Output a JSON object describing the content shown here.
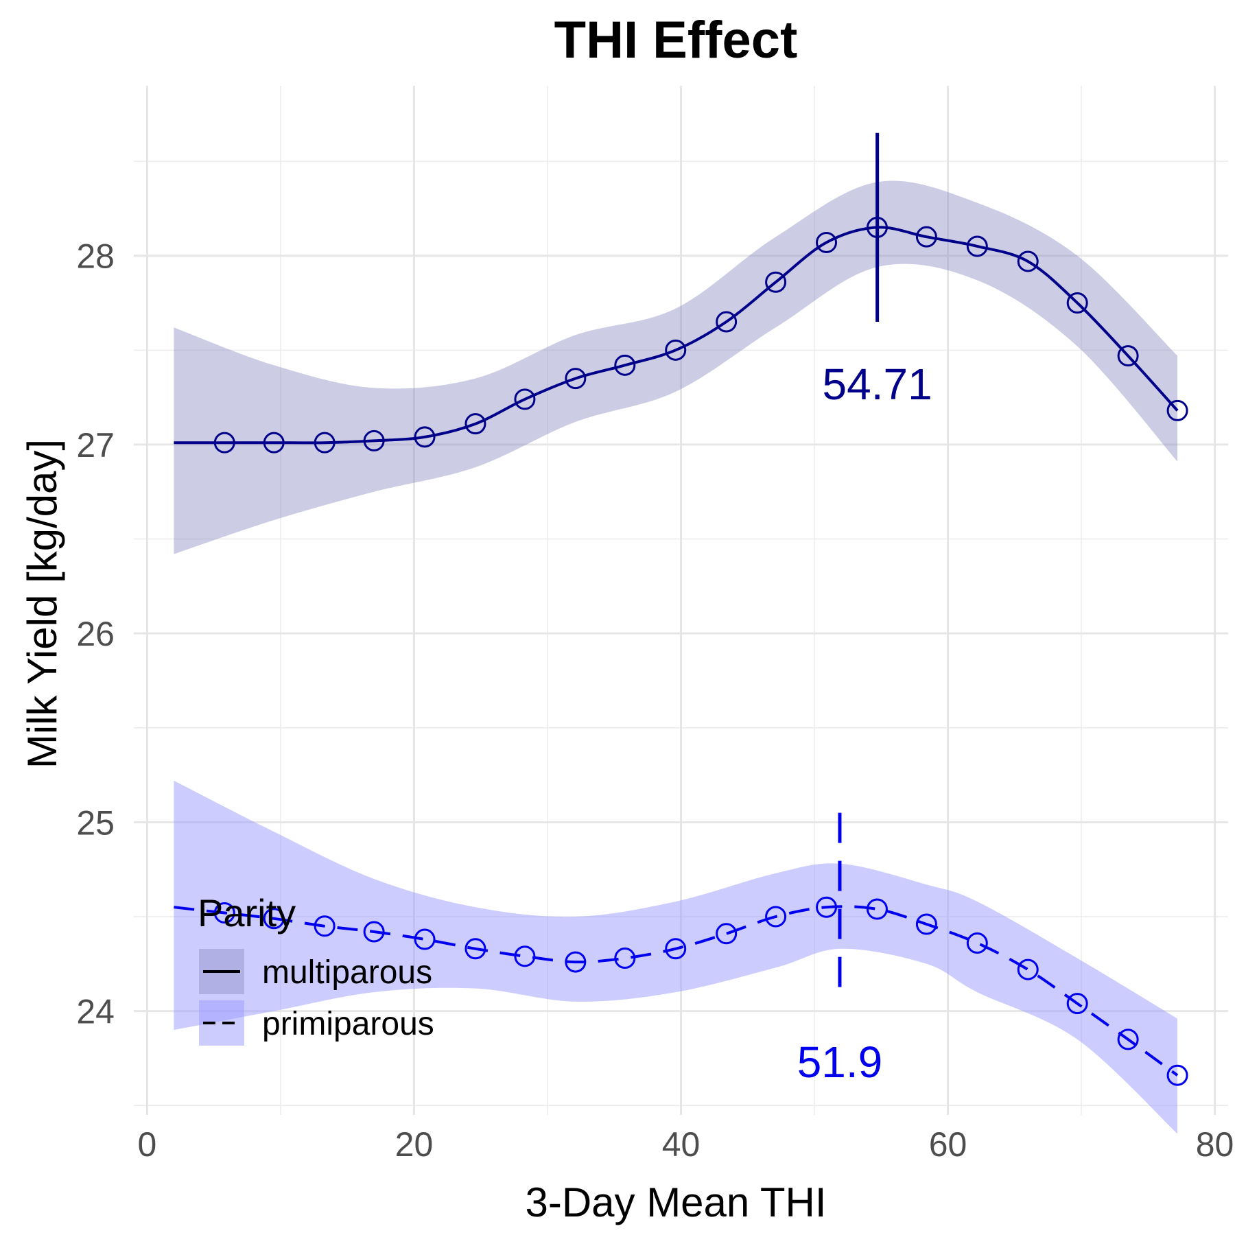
{
  "chart_data": {
    "type": "line",
    "title": "THI Effect",
    "xlabel": "3-Day Mean THI",
    "ylabel": "Milk Yield [kg/day]",
    "xlim": [
      -1,
      81
    ],
    "ylim": [
      23.45,
      28.9
    ],
    "x_ticks": [
      0,
      20,
      40,
      60,
      80
    ],
    "x_tick_labels": [
      "0",
      "20",
      "40",
      "60",
      "80"
    ],
    "y_ticks": [
      24,
      25,
      26,
      27,
      28
    ],
    "y_tick_labels": [
      "24",
      "25",
      "26",
      "27",
      "28"
    ],
    "grid": true,
    "legend": {
      "title": "Parity",
      "position": "bottom-left",
      "entries": [
        {
          "label": "multiparous",
          "linestyle": "solid"
        },
        {
          "label": "primiparous",
          "linestyle": "dashed"
        }
      ]
    },
    "series": [
      {
        "name": "multiparous",
        "color": "#00008b",
        "fill": "#8f8fc4",
        "linestyle": "solid",
        "curve": {
          "x": [
            2,
            5.8,
            9.5,
            13.3,
            17,
            20.8,
            24.6,
            28.3,
            32.1,
            35.8,
            39.6,
            43.4,
            47.1,
            50.9,
            54.7,
            58.4,
            62.2,
            66,
            69.7,
            73.5,
            77.2
          ],
          "y": [
            27.01,
            27.01,
            27.01,
            27.01,
            27.02,
            27.04,
            27.11,
            27.24,
            27.35,
            27.42,
            27.5,
            27.65,
            27.86,
            28.07,
            28.15,
            28.1,
            28.05,
            27.97,
            27.75,
            27.47,
            27.18
          ]
        },
        "band": {
          "x": [
            2,
            9.5,
            17,
            24.6,
            32.1,
            39.6,
            47.1,
            54.7,
            62.2,
            69.7,
            77.2
          ],
          "lower": [
            26.42,
            26.6,
            26.75,
            26.88,
            27.12,
            27.28,
            27.62,
            27.94,
            27.87,
            27.52,
            26.91
          ],
          "upper": [
            27.62,
            27.42,
            27.3,
            27.35,
            27.58,
            27.72,
            28.1,
            28.39,
            28.28,
            28.0,
            27.47
          ]
        },
        "markers": {
          "x": [
            5.8,
            9.5,
            13.3,
            17,
            20.8,
            24.6,
            28.3,
            32.1,
            35.8,
            39.6,
            43.4,
            47.1,
            50.9,
            54.7,
            58.4,
            62.2,
            66,
            69.7,
            73.5,
            77.2
          ],
          "y": [
            27.01,
            27.01,
            27.01,
            27.02,
            27.04,
            27.11,
            27.24,
            27.35,
            27.42,
            27.5,
            27.65,
            27.86,
            28.07,
            28.15,
            28.1,
            28.05,
            27.97,
            27.75,
            27.47,
            27.18
          ]
        },
        "peak": {
          "x": 54.71,
          "y_range": [
            27.65,
            28.65
          ],
          "label": "54.71",
          "label_y": 27.32
        }
      },
      {
        "name": "primiparous",
        "color": "#0000ee",
        "fill": "#9a9aff",
        "linestyle": "dashed",
        "curve": {
          "x": [
            2,
            5.8,
            9.5,
            13.3,
            17,
            20.8,
            24.6,
            28.3,
            32.1,
            35.8,
            39.6,
            43.4,
            47.1,
            50.9,
            54.7,
            58.4,
            62.2,
            66,
            69.7,
            73.5,
            77.2
          ],
          "y": [
            24.55,
            24.52,
            24.49,
            24.45,
            24.42,
            24.38,
            24.33,
            24.29,
            24.26,
            24.28,
            24.33,
            24.41,
            24.5,
            24.55,
            24.54,
            24.46,
            24.36,
            24.22,
            24.04,
            23.85,
            23.66
          ]
        },
        "band": {
          "x": [
            2,
            9.5,
            17,
            24.6,
            32.1,
            39.6,
            47.1,
            52,
            58.4,
            62.2,
            69.7,
            77.2
          ],
          "lower": [
            23.9,
            24.0,
            24.1,
            24.12,
            24.05,
            24.1,
            24.23,
            24.33,
            24.25,
            24.1,
            23.85,
            23.35
          ],
          "upper": [
            25.22,
            24.95,
            24.7,
            24.55,
            24.5,
            24.58,
            24.73,
            24.78,
            24.67,
            24.58,
            24.28,
            23.96
          ]
        },
        "markers": {
          "x": [
            5.8,
            9.5,
            13.3,
            17,
            20.8,
            24.6,
            28.3,
            32.1,
            35.8,
            39.6,
            43.4,
            47.1,
            50.9,
            54.7,
            58.4,
            62.2,
            66,
            69.7,
            73.5,
            77.2
          ],
          "y": [
            24.52,
            24.49,
            24.45,
            24.42,
            24.38,
            24.33,
            24.29,
            24.26,
            24.28,
            24.33,
            24.41,
            24.5,
            24.55,
            24.54,
            24.46,
            24.36,
            24.22,
            24.04,
            23.85,
            23.66
          ]
        },
        "peak": {
          "x": 51.9,
          "y_range": [
            24.05,
            25.05
          ],
          "label": "51.9",
          "label_y": 23.73
        }
      }
    ]
  }
}
